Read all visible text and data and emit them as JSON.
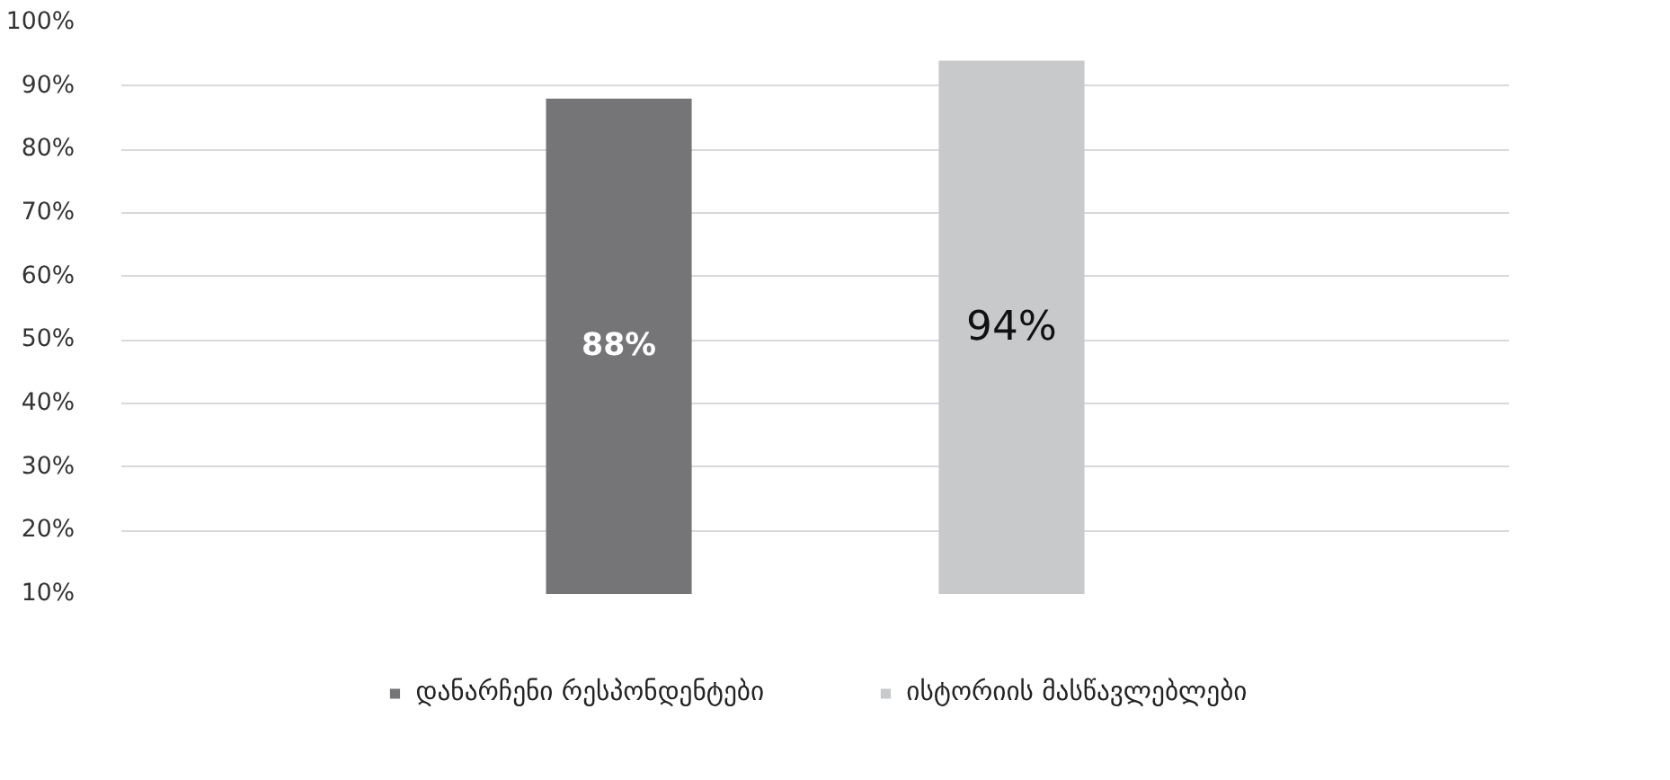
{
  "chart_data": {
    "type": "bar",
    "categories": [
      null
    ],
    "series": [
      {
        "name": "დანარჩენი რესპონდენტები",
        "color": "#757578",
        "values": [
          88
        ],
        "value_labels": [
          "88%"
        ]
      },
      {
        "name": "ისტორიის მასწავლებლები",
        "color": "#c8c9cb",
        "values": [
          94
        ],
        "value_labels": [
          "94%"
        ]
      }
    ],
    "ylim": [
      10,
      100
    ],
    "yticks": [
      {
        "value": 10,
        "label": "10%"
      },
      {
        "value": 20,
        "label": "20%"
      },
      {
        "value": 30,
        "label": "30%"
      },
      {
        "value": 40,
        "label": "40%"
      },
      {
        "value": 50,
        "label": "50%"
      },
      {
        "value": 60,
        "label": "60%"
      },
      {
        "value": 70,
        "label": "70%"
      },
      {
        "value": 80,
        "label": "80%"
      },
      {
        "value": 90,
        "label": "90%"
      },
      {
        "value": 100,
        "label": "100%"
      }
    ],
    "grid": "y",
    "legend": "bottom"
  }
}
